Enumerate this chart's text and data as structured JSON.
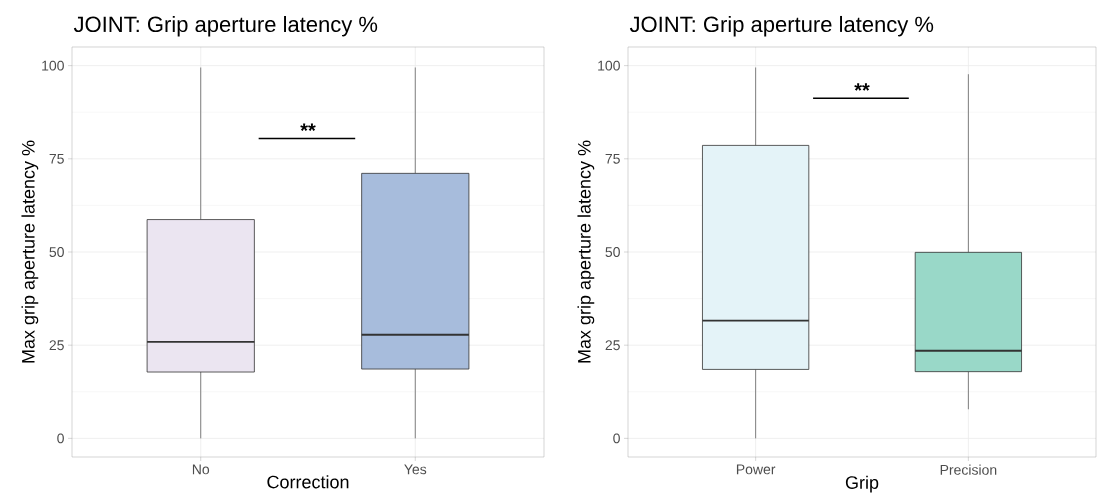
{
  "chart_data": [
    {
      "type": "box",
      "title": "JOINT: Grip aperture latency %",
      "xlabel": "Correction",
      "ylabel": "Max grip aperture latency %",
      "categories": [
        "No",
        "Yes"
      ],
      "boxes": [
        {
          "low": 0,
          "q1": 17.8,
          "median": 25.9,
          "q3": 58.7,
          "high": 99.5
        },
        {
          "low": 0,
          "q1": 18.6,
          "median": 27.8,
          "q3": 71.1,
          "high": 99.5
        }
      ],
      "colors": [
        "#ebe5f1",
        "#a7bcdc"
      ],
      "ylim": [
        -5,
        105
      ],
      "yticks": [
        0,
        25,
        50,
        75,
        100
      ],
      "grid": true,
      "annotations": [
        "**"
      ]
    },
    {
      "type": "box",
      "title": "JOINT: Grip aperture latency %",
      "xlabel": "Grip",
      "ylabel": "Max grip aperture latency %",
      "categories": [
        "Power",
        "Precision"
      ],
      "boxes": [
        {
          "low": 0,
          "q1": 18.5,
          "median": 31.6,
          "q3": 78.6,
          "high": 99.5
        },
        {
          "low": 7.8,
          "q1": 17.9,
          "median": 23.5,
          "q3": 49.9,
          "high": 97.7
        }
      ],
      "colors": [
        "#e4f3f8",
        "#99d8c8"
      ],
      "ylim": [
        -5,
        105
      ],
      "yticks": [
        0,
        25,
        50,
        75,
        100
      ],
      "grid": true,
      "annotations": [
        "**"
      ]
    }
  ]
}
